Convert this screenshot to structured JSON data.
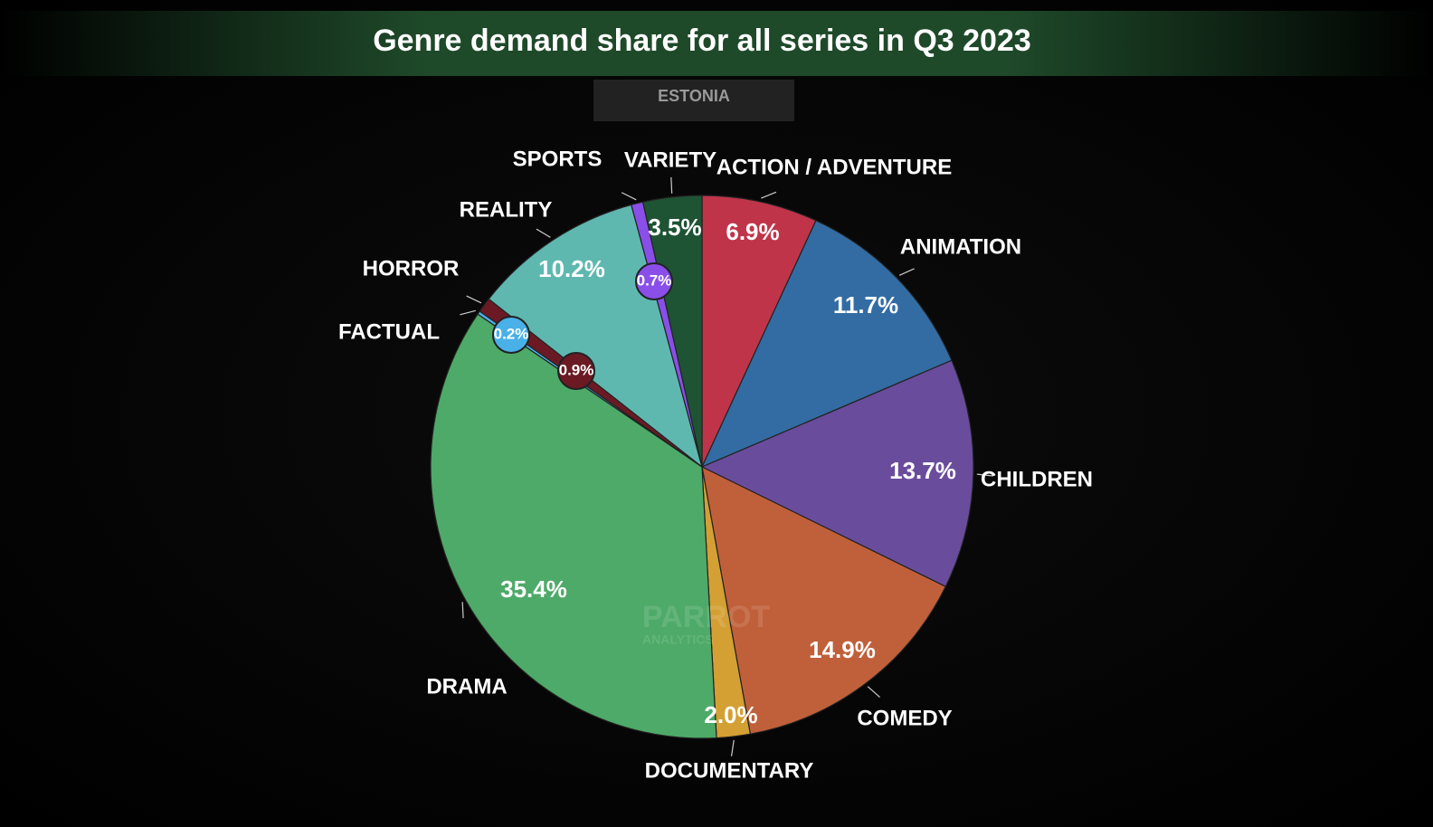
{
  "chart_data": {
    "type": "pie",
    "title": "Genre demand share for all series in Q3 2023",
    "subtitle": "ESTONIA",
    "watermark": [
      "PARROT",
      "ANALYTICS"
    ],
    "categories": [
      "ACTION / ADVENTURE",
      "ANIMATION",
      "CHILDREN",
      "COMEDY",
      "DOCUMENTARY",
      "DRAMA",
      "FACTUAL",
      "HORROR",
      "REALITY",
      "SPORTS",
      "VARIETY"
    ],
    "values": [
      6.9,
      11.7,
      13.7,
      14.9,
      2.0,
      35.4,
      0.2,
      0.9,
      10.2,
      0.7,
      3.5
    ],
    "value_labels": [
      "6.9%",
      "11.7%",
      "13.7%",
      "14.9%",
      "2.0%",
      "35.4%",
      "0.2%",
      "0.9%",
      "10.2%",
      "0.7%",
      "3.5%"
    ],
    "colors": [
      "#c0344a",
      "#336ca3",
      "#6a4c9c",
      "#c0603a",
      "#d4a034",
      "#4eaa68",
      "#4ab0e8",
      "#6b1a24",
      "#5fb8b0",
      "#8a4fe8",
      "#1e5434"
    ]
  }
}
